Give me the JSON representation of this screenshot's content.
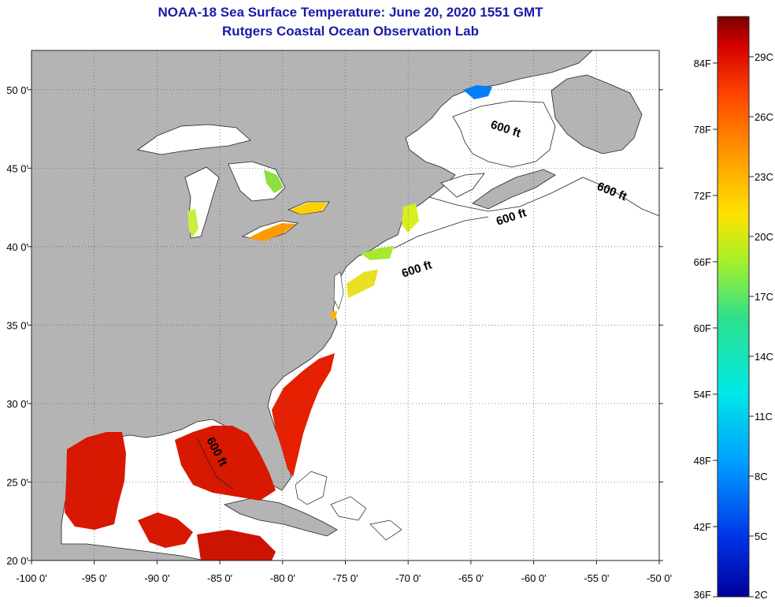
{
  "header": {
    "title": "NOAA-18 Sea Surface Temperature:  June 20, 2020 1551 GMT",
    "subtitle": "Rutgers Coastal Ocean Observation Lab"
  },
  "map": {
    "lon_range": [
      -100,
      -50
    ],
    "lat_range": [
      20,
      52.5
    ],
    "lon_ticks": [
      "-100 0'",
      "-95 0'",
      "-90 0'",
      "-85 0'",
      "-80 0'",
      "-75 0'",
      "-70 0'",
      "-65 0'",
      "-60 0'",
      "-55 0'",
      "-50 0'"
    ],
    "lat_ticks": [
      "50 0'",
      "45 0'",
      "40 0'",
      "35 0'",
      "30 0'",
      "25 0'",
      "20 0'"
    ],
    "land_color": "#b4b4b4",
    "ocean_color": "#ffffff",
    "grid": "dotted",
    "isobath_label": "600 ft",
    "isobath_labels": [
      {
        "text": "600 ft",
        "near": "Gulf of St. Lawrence"
      },
      {
        "text": "600 ft",
        "near": "Grand Banks"
      },
      {
        "text": "600 ft",
        "near": "Gulf of Maine"
      },
      {
        "text": "600 ft",
        "near": "Mid-Atlantic shelf"
      },
      {
        "text": "600 ft",
        "near": "Gulf of Mexico"
      }
    ]
  },
  "colorbar": {
    "fahrenheit": [
      "84F",
      "78F",
      "72F",
      "66F",
      "60F",
      "54F",
      "48F",
      "42F",
      "36F"
    ],
    "celsius": [
      "29C",
      "26C",
      "23C",
      "20C",
      "17C",
      "14C",
      "11C",
      "8C",
      "5C",
      "2C"
    ],
    "colors": [
      "#7a0000",
      "#d40000",
      "#ff4a00",
      "#ff9a00",
      "#ffe200",
      "#a8f028",
      "#2ee08c",
      "#00e8e8",
      "#0096ff",
      "#0032e6",
      "#00009a"
    ]
  }
}
